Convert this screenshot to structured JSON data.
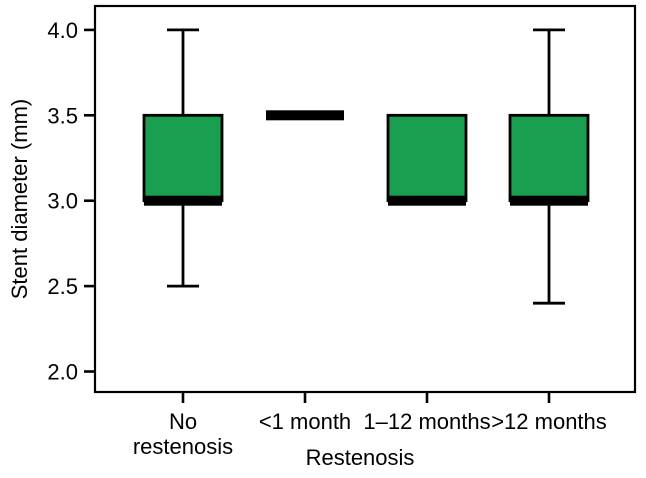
{
  "chart_data": {
    "type": "box",
    "title": "",
    "xlabel": "Restenosis",
    "ylabel": "Stent diameter (mm)",
    "ylim": [
      1.88,
      4.14
    ],
    "grid": false,
    "legend": "none",
    "y_ticks": [
      {
        "value": 4.0,
        "label": "4.0"
      },
      {
        "value": 3.5,
        "label": "3.5"
      },
      {
        "value": 3.0,
        "label": "3.0"
      },
      {
        "value": 2.5,
        "label": "2.5"
      },
      {
        "value": 2.0,
        "label": "2.0"
      }
    ],
    "categories": [
      "No restenosis",
      "<1 month",
      "1–12 months",
      ">12 months"
    ],
    "category_label_lines": [
      [
        "No",
        "restenosis"
      ],
      [
        "<1 month"
      ],
      [
        "1–12 months"
      ],
      [
        ">12 months"
      ]
    ],
    "boxes": [
      {
        "category": "No restenosis",
        "q1": 3.0,
        "median": 3.0,
        "q3": 3.5,
        "whisker_low": 2.5,
        "whisker_high": 4.0
      },
      {
        "category": "<1 month",
        "q1": 3.5,
        "median": 3.5,
        "q3": 3.5,
        "whisker_low": 3.5,
        "whisker_high": 3.5
      },
      {
        "category": "1–12 months",
        "q1": 3.0,
        "median": 3.0,
        "q3": 3.5,
        "whisker_low": 3.0,
        "whisker_high": 3.5
      },
      {
        "category": ">12 months",
        "q1": 3.0,
        "median": 3.0,
        "q3": 3.5,
        "whisker_low": 2.4,
        "whisker_high": 4.0
      }
    ],
    "colors": {
      "box_fill": "#1A9E50",
      "line": "#000000",
      "background": "#FFFFFF"
    }
  }
}
